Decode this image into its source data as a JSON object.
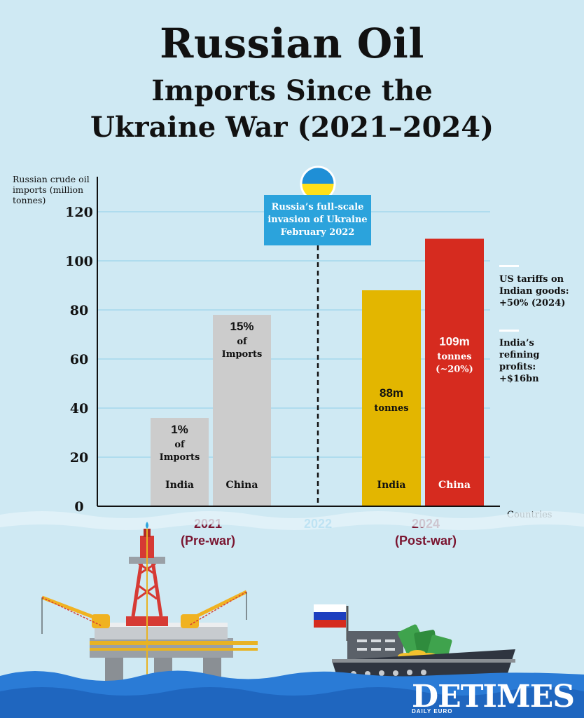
{
  "title": {
    "line1": "Russian Oil",
    "line2": "Imports Since the",
    "line3": "Ukraine War (2021–2024)"
  },
  "chart_data": {
    "type": "bar",
    "title": "Russian Oil Imports Since the Ukraine War (2021–2024)",
    "ylabel": "Russian crude oil imports (million tonnes)",
    "xlabel": "Countries",
    "ylim": [
      0,
      130
    ],
    "yticks": [
      "0",
      "20",
      "40",
      "60",
      "80",
      "100",
      "120"
    ],
    "grid": true,
    "groups": [
      {
        "label": "2021",
        "sublabel": "(Pre-war)",
        "color": "#7a1530"
      },
      {
        "label": "2022",
        "sublabel": "",
        "color": "#2ba3dc"
      },
      {
        "label": "2024",
        "sublabel": "(Post-war)",
        "color": "#7a1530"
      }
    ],
    "bars": [
      {
        "group": "2021",
        "category": "India",
        "value": 36,
        "color": "#cccccc",
        "lines": [
          "1%",
          "of",
          "Imports"
        ]
      },
      {
        "group": "2021",
        "category": "China",
        "value": 78,
        "color": "#cccccc",
        "lines": [
          "15%",
          "of",
          "Imports"
        ]
      },
      {
        "group": "2024",
        "category": "India",
        "value": 88,
        "color": "#e3b600",
        "lines": [
          "88m",
          "tonnes"
        ]
      },
      {
        "group": "2024",
        "category": "China",
        "value": 109,
        "color": "#d62b1f",
        "lines": [
          "109m",
          "tonnes",
          "(~20%)"
        ]
      }
    ],
    "event": {
      "at_group": "2022",
      "lines": [
        "Russia’s full-scale",
        "invasion of Ukraine",
        "February 2022"
      ]
    }
  },
  "side_notes": [
    {
      "lines": [
        "US tariffs on",
        "Indian goods:",
        "+50% (2024)"
      ]
    },
    {
      "lines": [
        "India’s",
        "refining",
        "profits:",
        "+$16bn"
      ]
    }
  ],
  "colors": {
    "background": "#cfe9f3",
    "sea": "#2a7bd6",
    "grid": "#8fd0ea"
  },
  "brand": {
    "logo_text": "DETIMES",
    "logo_sub": "DAILY EURO"
  },
  "icons": [
    "ukraine-flag-icon",
    "russia-flag-icon",
    "oil-rig-icon",
    "tanker-ship-icon",
    "money-icon"
  ]
}
